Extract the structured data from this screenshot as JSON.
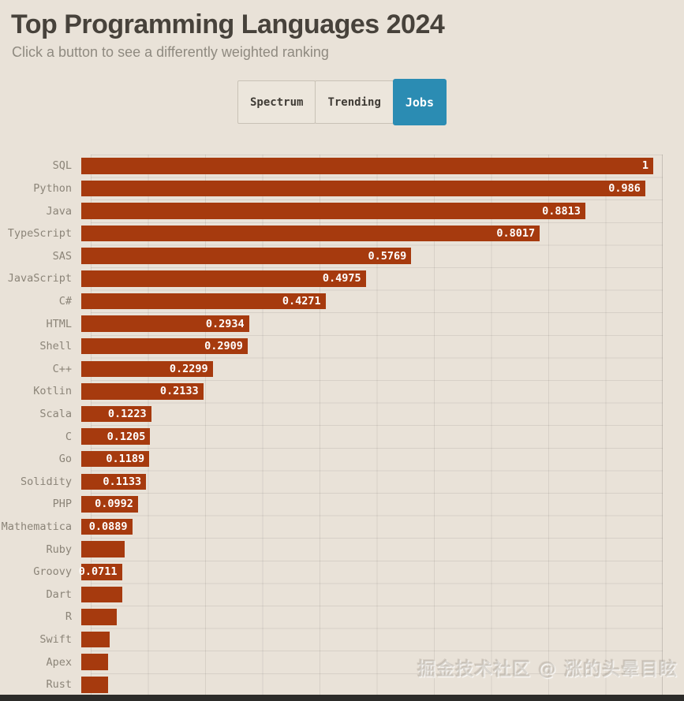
{
  "header": {
    "title": "Top Programming Languages 2024",
    "subtitle": "Click a button to see a differently weighted ranking"
  },
  "toolbar": {
    "buttons": [
      {
        "label": "Spectrum",
        "active": false
      },
      {
        "label": "Trending",
        "active": false
      },
      {
        "label": "Jobs",
        "active": true
      }
    ]
  },
  "chart_data": {
    "type": "bar",
    "orientation": "horizontal",
    "title": "Top Programming Languages 2024",
    "xlabel": "",
    "ylabel": "",
    "xlim": [
      0,
      1
    ],
    "grid": "on",
    "grid_step": 0.1,
    "categories": [
      "SQL",
      "Python",
      "Java",
      "TypeScript",
      "SAS",
      "JavaScript",
      "C#",
      "HTML",
      "Shell",
      "C++",
      "Kotlin",
      "Scala",
      "C",
      "Go",
      "Solidity",
      "PHP",
      "Mathematica",
      "Ruby",
      "Groovy",
      "Dart",
      "R",
      "Swift",
      "Apex",
      "Rust"
    ],
    "values": [
      1,
      0.986,
      0.8813,
      0.8017,
      0.5769,
      0.4975,
      0.4271,
      0.2934,
      0.2909,
      0.2299,
      0.2133,
      0.1223,
      0.1205,
      0.1189,
      0.1133,
      0.0992,
      0.0889,
      0.076,
      0.0711,
      0.071,
      0.062,
      0.049,
      0.047,
      0.0465
    ],
    "value_labels": [
      "1",
      "0.986",
      "0.8813",
      "0.8017",
      "0.5769",
      "0.4975",
      "0.4271",
      "0.2934",
      "0.2909",
      "0.2299",
      "0.2133",
      "0.1223",
      "0.1205",
      "0.1189",
      "0.1133",
      "0.0992",
      "0.0889",
      "",
      "0.0711",
      "",
      "",
      "",
      "",
      ""
    ]
  },
  "watermark": {
    "text": "掘金技术社区 @ 涨的头晕目眩"
  },
  "colors": {
    "background": "#e9e2d8",
    "bar": "#a63a0e",
    "active_button": "#2b8cb3",
    "button_bg": "#ece6dc",
    "button_border": "#c9c2b6",
    "button_text": "#3f3b35",
    "title_text": "#47423b",
    "subtitle_text": "#8f8a80",
    "label_text": "#8b8478",
    "value_text": "#ffffff",
    "grid_line": "rgba(0,0,0,0.08)",
    "footer_strip": "#2c2b29"
  }
}
